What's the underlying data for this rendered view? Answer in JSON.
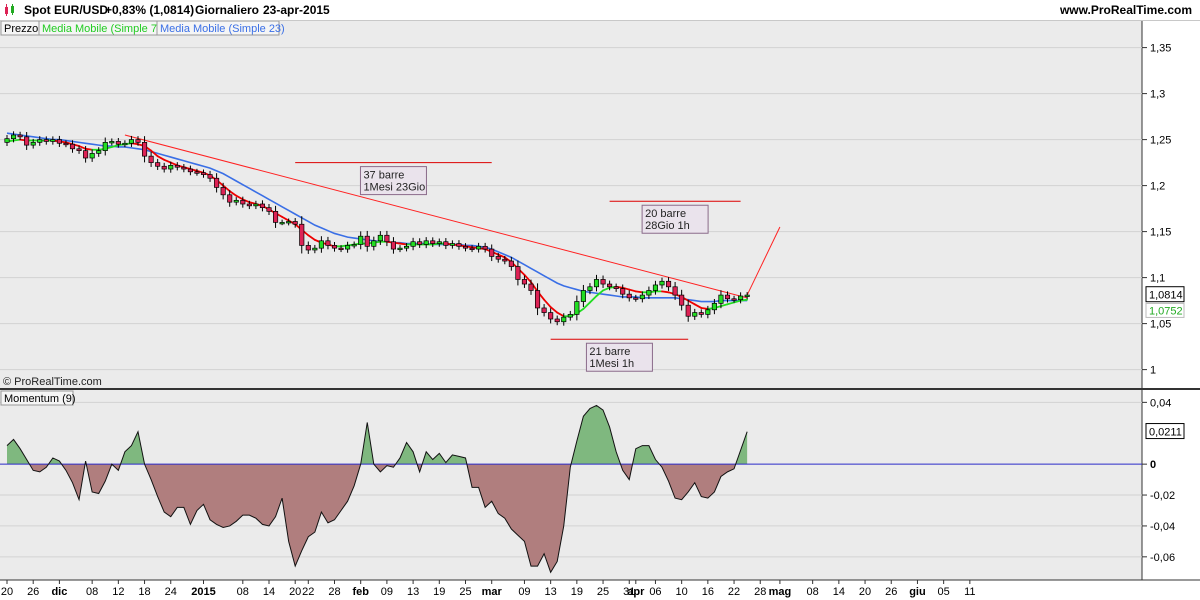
{
  "header": {
    "symbol": "Spot EUR/USD",
    "change": "+0,83% (1,0814)",
    "period": "Giornaliero",
    "date": "23-apr-2015",
    "site": "www.ProRealTime.com"
  },
  "legend": {
    "price": "Prezzo",
    "ma7": "Media Mobile (Simple 7)",
    "ma23": "Media Mobile (Simple 23)"
  },
  "copyright": "© ProRealTime.com",
  "momentum_label": "Momentum (9)",
  "colors": {
    "bull": "#22dd22",
    "bear": "#dd2255",
    "ma7_up": "#22dd22",
    "ma7_down": "#ee0000",
    "ma23": "#3a6fe6",
    "trend": "#ff2222",
    "mom_pos": "#7fb87f",
    "mom_neg": "#b07e7e",
    "mom_zero": "#2a2ac8"
  },
  "chart_data": [
    {
      "type": "candlestick",
      "title": "Spot EUR/USD",
      "ylim": [
        0.98,
        1.38
      ],
      "yticks": [
        "1,35",
        "1,3",
        "1,25",
        "1,2",
        "1,15",
        "1,1",
        "1,05",
        "1"
      ],
      "ytick_values": [
        1.35,
        1.3,
        1.25,
        1.2,
        1.15,
        1.1,
        1.05,
        1.0
      ],
      "last_price_label": "1,0814",
      "last_price": 1.0814,
      "ma23_label": "1,0752",
      "ma23_value": 1.0752,
      "xticks": [
        {
          "label": "20",
          "bar": 0,
          "bold": false
        },
        {
          "label": "26",
          "bar": 4,
          "bold": false
        },
        {
          "label": "dic",
          "bar": 8,
          "bold": true
        },
        {
          "label": "08",
          "bar": 13,
          "bold": false
        },
        {
          "label": "12",
          "bar": 17,
          "bold": false
        },
        {
          "label": "18",
          "bar": 21,
          "bold": false
        },
        {
          "label": "24",
          "bar": 25,
          "bold": false
        },
        {
          "label": "2015",
          "bar": 30,
          "bold": true
        },
        {
          "label": "08",
          "bar": 36,
          "bold": false
        },
        {
          "label": "14",
          "bar": 40,
          "bold": false
        },
        {
          "label": "20",
          "bar": 44,
          "bold": false
        },
        {
          "label": "22",
          "bar": 46,
          "bold": false
        },
        {
          "label": "28",
          "bar": 50,
          "bold": false
        },
        {
          "label": "feb",
          "bar": 54,
          "bold": true
        },
        {
          "label": "09",
          "bar": 58,
          "bold": false
        },
        {
          "label": "13",
          "bar": 62,
          "bold": false
        },
        {
          "label": "19",
          "bar": 66,
          "bold": false
        },
        {
          "label": "25",
          "bar": 70,
          "bold": false
        },
        {
          "label": "mar",
          "bar": 74,
          "bold": true
        },
        {
          "label": "09",
          "bar": 79,
          "bold": false
        },
        {
          "label": "13",
          "bar": 83,
          "bold": false
        },
        {
          "label": "19",
          "bar": 87,
          "bold": false
        },
        {
          "label": "25",
          "bar": 91,
          "bold": false
        },
        {
          "label": "31",
          "bar": 95,
          "bold": false
        },
        {
          "label": "apr",
          "bar": 96,
          "bold": true
        },
        {
          "label": "06",
          "bar": 99,
          "bold": false
        },
        {
          "label": "10",
          "bar": 103,
          "bold": false
        },
        {
          "label": "16",
          "bar": 107,
          "bold": false
        },
        {
          "label": "22",
          "bar": 111,
          "bold": false
        },
        {
          "label": "28",
          "bar": 115,
          "bold": false
        },
        {
          "label": "mag",
          "bar": 118,
          "bold": true
        },
        {
          "label": "08",
          "bar": 123,
          "bold": false
        },
        {
          "label": "14",
          "bar": 127,
          "bold": false
        },
        {
          "label": "20",
          "bar": 131,
          "bold": false
        },
        {
          "label": "26",
          "bar": 135,
          "bold": false
        },
        {
          "label": "giu",
          "bar": 139,
          "bold": true
        },
        {
          "label": "05",
          "bar": 143,
          "bold": false
        },
        {
          "label": "11",
          "bar": 147,
          "bold": false
        }
      ],
      "series": [
        {
          "name": "Prezzo",
          "close": [
            1.251,
            1.255,
            1.253,
            1.244,
            1.247,
            1.25,
            1.248,
            1.25,
            1.246,
            1.245,
            1.24,
            1.238,
            1.23,
            1.235,
            1.238,
            1.247,
            1.248,
            1.245,
            1.246,
            1.25,
            1.247,
            1.232,
            1.225,
            1.221,
            1.218,
            1.222,
            1.22,
            1.218,
            1.215,
            1.214,
            1.212,
            1.208,
            1.198,
            1.19,
            1.182,
            1.184,
            1.18,
            1.178,
            1.18,
            1.176,
            1.172,
            1.16,
            1.16,
            1.161,
            1.158,
            1.135,
            1.13,
            1.132,
            1.14,
            1.135,
            1.132,
            1.131,
            1.135,
            1.136,
            1.145,
            1.134,
            1.14,
            1.146,
            1.139,
            1.131,
            1.132,
            1.134,
            1.139,
            1.136,
            1.14,
            1.137,
            1.139,
            1.135,
            1.137,
            1.134,
            1.132,
            1.131,
            1.134,
            1.131,
            1.123,
            1.12,
            1.118,
            1.112,
            1.098,
            1.093,
            1.086,
            1.067,
            1.062,
            1.055,
            1.052,
            1.057,
            1.06,
            1.074,
            1.086,
            1.09,
            1.098,
            1.093,
            1.09,
            1.088,
            1.082,
            1.078,
            1.077,
            1.081,
            1.086,
            1.092,
            1.096,
            1.09,
            1.081,
            1.07,
            1.058,
            1.062,
            1.06,
            1.065,
            1.072,
            1.081,
            1.077,
            1.076,
            1.08,
            1.081
          ]
        },
        {
          "name": "Media Mobile (Simple 7)",
          "values": [
            1.248,
            1.249,
            1.25,
            1.249,
            1.249,
            1.249,
            1.249,
            1.249,
            1.248,
            1.247,
            1.245,
            1.243,
            1.24,
            1.239,
            1.239,
            1.24,
            1.242,
            1.244,
            1.245,
            1.246,
            1.245,
            1.243,
            1.238,
            1.232,
            1.228,
            1.225,
            1.222,
            1.22,
            1.218,
            1.216,
            1.214,
            1.211,
            1.206,
            1.2,
            1.194,
            1.189,
            1.185,
            1.182,
            1.18,
            1.178,
            1.174,
            1.17,
            1.166,
            1.162,
            1.158,
            1.152,
            1.146,
            1.141,
            1.138,
            1.136,
            1.134,
            1.134,
            1.135,
            1.136,
            1.137,
            1.137,
            1.138,
            1.139,
            1.139,
            1.138,
            1.137,
            1.136,
            1.136,
            1.136,
            1.136,
            1.136,
            1.137,
            1.137,
            1.136,
            1.135,
            1.134,
            1.133,
            1.132,
            1.131,
            1.128,
            1.125,
            1.122,
            1.117,
            1.11,
            1.103,
            1.095,
            1.085,
            1.076,
            1.068,
            1.062,
            1.058,
            1.058,
            1.061,
            1.066,
            1.073,
            1.08,
            1.086,
            1.089,
            1.09,
            1.089,
            1.087,
            1.085,
            1.084,
            1.084,
            1.085,
            1.085,
            1.084,
            1.082,
            1.079,
            1.075,
            1.071,
            1.067,
            1.066,
            1.067,
            1.069,
            1.071,
            1.073,
            1.075,
            1.076
          ]
        },
        {
          "name": "Media Mobile (Simple 23)",
          "values": [
            1.257,
            1.256,
            1.255,
            1.254,
            1.253,
            1.252,
            1.251,
            1.25,
            1.25,
            1.249,
            1.248,
            1.247,
            1.246,
            1.245,
            1.244,
            1.243,
            1.243,
            1.242,
            1.242,
            1.241,
            1.24,
            1.239,
            1.237,
            1.235,
            1.233,
            1.231,
            1.229,
            1.227,
            1.225,
            1.223,
            1.221,
            1.219,
            1.216,
            1.213,
            1.209,
            1.205,
            1.201,
            1.197,
            1.193,
            1.189,
            1.185,
            1.181,
            1.177,
            1.173,
            1.169,
            1.165,
            1.161,
            1.157,
            1.154,
            1.151,
            1.148,
            1.146,
            1.144,
            1.143,
            1.142,
            1.141,
            1.14,
            1.139,
            1.139,
            1.138,
            1.138,
            1.137,
            1.137,
            1.137,
            1.137,
            1.136,
            1.136,
            1.136,
            1.136,
            1.136,
            1.135,
            1.135,
            1.134,
            1.133,
            1.131,
            1.128,
            1.125,
            1.122,
            1.118,
            1.114,
            1.11,
            1.106,
            1.102,
            1.098,
            1.094,
            1.091,
            1.089,
            1.087,
            1.085,
            1.084,
            1.083,
            1.082,
            1.081,
            1.08,
            1.079,
            1.079,
            1.079,
            1.078,
            1.078,
            1.078,
            1.078,
            1.078,
            1.078,
            1.077,
            1.076,
            1.075,
            1.074,
            1.074,
            1.074,
            1.075,
            1.075,
            1.075,
            1.075,
            1.075
          ]
        }
      ],
      "trendline": {
        "from": {
          "bar": 18,
          "value": 1.255
        },
        "to": {
          "bar": 113,
          "value": 1.078
        }
      },
      "projection": {
        "from": {
          "bar": 113,
          "value": 1.081
        },
        "to": {
          "bar": 118,
          "value": 1.155
        }
      },
      "annotations": [
        {
          "line_bars": [
            44,
            74
          ],
          "line_value": 1.225,
          "text": [
            "37 barre",
            "1Mesi 23Gio"
          ]
        },
        {
          "line_bars": [
            92,
            112
          ],
          "line_value": 1.183,
          "text": [
            "20 barre",
            "28Gio 1h"
          ]
        },
        {
          "line_bars": [
            83,
            104
          ],
          "line_value": 1.033,
          "text": [
            "21 barre",
            "1Mesi 1h"
          ]
        }
      ]
    },
    {
      "type": "area",
      "title": "Momentum (9)",
      "ylim": [
        -0.075,
        0.048
      ],
      "yticks": [
        "0,04",
        "0",
        "-0,02",
        "-0,04",
        "-0,06"
      ],
      "ytick_values": [
        0.04,
        0.0,
        -0.02,
        -0.04,
        -0.06
      ],
      "last_value_label": "0,0211",
      "last_value": 0.0211,
      "values": [
        0.012,
        0.016,
        0.01,
        0.003,
        -0.004,
        -0.005,
        -0.002,
        0.004,
        0.002,
        -0.004,
        -0.012,
        -0.023,
        0.002,
        -0.018,
        -0.019,
        -0.011,
        0.0,
        -0.004,
        0.008,
        0.012,
        0.021,
        0.0,
        -0.01,
        -0.021,
        -0.031,
        -0.034,
        -0.028,
        -0.028,
        -0.039,
        -0.03,
        -0.026,
        -0.036,
        -0.039,
        -0.041,
        -0.04,
        -0.037,
        -0.033,
        -0.033,
        -0.035,
        -0.039,
        -0.04,
        -0.034,
        -0.022,
        -0.05,
        -0.066,
        -0.056,
        -0.047,
        -0.044,
        -0.031,
        -0.038,
        -0.036,
        -0.03,
        -0.024,
        -0.014,
        0.0,
        0.027,
        0.0,
        -0.005,
        -0.001,
        -0.002,
        0.004,
        0.014,
        0.008,
        -0.005,
        0.008,
        0.003,
        0.007,
        0.001,
        0.006,
        0.005,
        0.004,
        -0.015,
        -0.015,
        -0.028,
        -0.024,
        -0.032,
        -0.035,
        -0.042,
        -0.046,
        -0.05,
        -0.066,
        -0.066,
        -0.058,
        -0.07,
        -0.063,
        -0.04,
        -0.002,
        0.015,
        0.031,
        0.036,
        0.038,
        0.035,
        0.024,
        0.008,
        -0.004,
        -0.01,
        0.01,
        0.012,
        0.012,
        0.003,
        -0.002,
        -0.011,
        -0.022,
        -0.023,
        -0.018,
        -0.012,
        -0.021,
        -0.022,
        -0.018,
        -0.008,
        -0.005,
        -0.003,
        0.009,
        0.021
      ]
    }
  ]
}
